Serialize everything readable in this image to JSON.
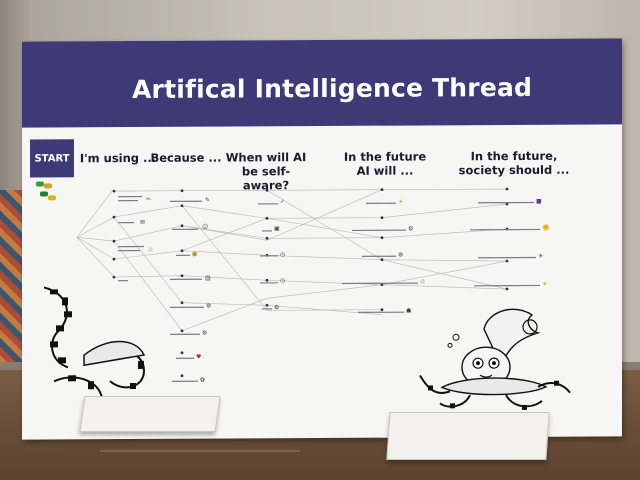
{
  "board": {
    "title": "Artifical Intelligence Thread",
    "start_label": "START",
    "columns": [
      {
        "heading": "I'm using ..."
      },
      {
        "heading": "Because ..."
      },
      {
        "heading": "When will AI be self-aware?"
      },
      {
        "heading": "In the future AI will ..."
      },
      {
        "heading": "In the future, society should ..."
      }
    ]
  },
  "colors": {
    "banner": "#3e3a78",
    "board": "#f6f6f4",
    "thread": "#b8b8b8"
  },
  "icons": [
    "wrench-icon",
    "book-icon",
    "robot-icon",
    "sun-icon",
    "gear-icon",
    "clock-icon",
    "heart-icon",
    "brain-icon"
  ]
}
